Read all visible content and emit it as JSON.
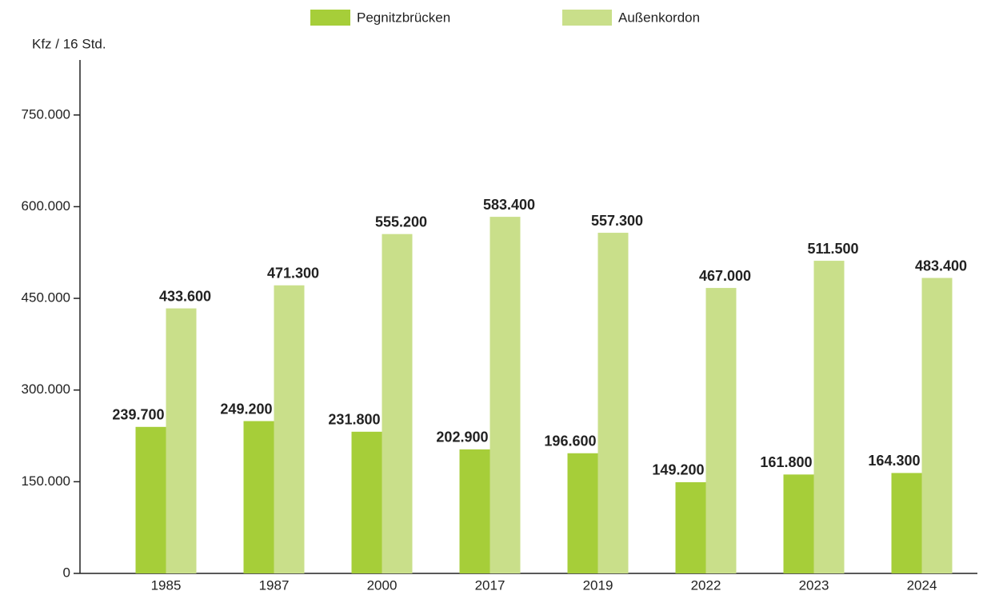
{
  "chart_data": {
    "type": "bar",
    "y_label": "Kfz / 16 Std.",
    "categories": [
      "1985",
      "1987",
      "2000",
      "2017",
      "2019",
      "2022",
      "2023",
      "2024"
    ],
    "series": [
      {
        "name": "Pegnitzbrücken",
        "color": "#a6ce39",
        "values": [
          239700,
          249200,
          231800,
          202900,
          196600,
          149200,
          161800,
          164300
        ],
        "value_labels": [
          "239.700",
          "249.200",
          "231.800",
          "202.900",
          "196.600",
          "149.200",
          "161.800",
          "164.300"
        ]
      },
      {
        "name": "Außenkordon",
        "color": "#c9df8a",
        "values": [
          433600,
          471300,
          555200,
          583400,
          557300,
          467000,
          511500,
          483400
        ],
        "value_labels": [
          "433.600",
          "471.300",
          "555.200",
          "583.400",
          "557.300",
          "467.000",
          "511.500",
          "483.400"
        ]
      }
    ],
    "ylim": [
      0,
      840000
    ],
    "yticks": [
      0,
      {
        "value": 150000,
        "label": "150.000"
      },
      {
        "value": 300000,
        "label": "300.000"
      },
      {
        "value": 450000,
        "label": "450.000"
      },
      {
        "value": 600000,
        "label": "600.000"
      },
      {
        "value": 750000,
        "label": "750.000"
      }
    ]
  }
}
